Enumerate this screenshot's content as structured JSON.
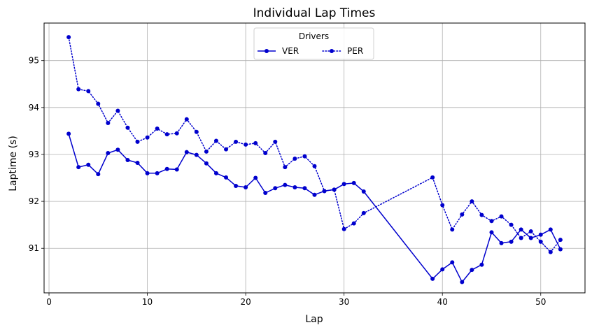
{
  "chart_data": {
    "type": "line",
    "title": "Individual Lap Times",
    "xlabel": "Lap",
    "ylabel": "Laptime (s)",
    "xlim": [
      -0.5,
      54.5
    ],
    "ylim": [
      90.05,
      95.8
    ],
    "xticks": [
      0,
      10,
      20,
      30,
      40,
      50
    ],
    "yticks": [
      91,
      92,
      93,
      94,
      95
    ],
    "grid": true,
    "legend": {
      "title": "Drivers",
      "placement": "top-center",
      "columns": 2
    },
    "series": [
      {
        "name": "VER",
        "color": "#0000cd",
        "linestyle": "solid",
        "marker": "circle",
        "x": [
          2,
          3,
          4,
          5,
          6,
          7,
          8,
          9,
          10,
          11,
          12,
          13,
          14,
          15,
          16,
          17,
          18,
          19,
          20,
          21,
          22,
          23,
          24,
          25,
          26,
          27,
          28,
          29,
          30,
          31,
          32,
          39,
          40,
          41,
          42,
          43,
          44,
          45,
          46,
          47,
          48,
          49,
          50,
          51,
          52
        ],
        "y": [
          93.44,
          92.73,
          92.78,
          92.58,
          93.03,
          93.1,
          92.88,
          92.82,
          92.6,
          92.6,
          92.69,
          92.68,
          93.05,
          92.99,
          92.81,
          92.6,
          92.51,
          92.33,
          92.3,
          92.5,
          92.18,
          92.28,
          92.35,
          92.3,
          92.28,
          92.14,
          92.22,
          92.25,
          92.37,
          92.39,
          92.21,
          90.35,
          90.55,
          90.7,
          90.28,
          90.54,
          90.65,
          91.34,
          91.11,
          91.14,
          91.4,
          91.22,
          91.29,
          91.4,
          90.98
        ]
      },
      {
        "name": "PER",
        "color": "#0000cd",
        "linestyle": "dotted",
        "marker": "circle",
        "x": [
          2,
          3,
          4,
          5,
          6,
          7,
          8,
          9,
          10,
          11,
          12,
          13,
          14,
          15,
          16,
          17,
          18,
          19,
          20,
          21,
          22,
          23,
          24,
          25,
          26,
          27,
          28,
          29,
          30,
          31,
          32,
          39,
          40,
          41,
          42,
          43,
          44,
          45,
          46,
          47,
          48,
          49,
          50,
          51,
          52
        ],
        "y": [
          95.5,
          94.39,
          94.35,
          94.08,
          93.67,
          93.93,
          93.57,
          93.27,
          93.36,
          93.55,
          93.43,
          93.45,
          93.75,
          93.48,
          93.06,
          93.29,
          93.11,
          93.27,
          93.21,
          93.24,
          93.03,
          93.27,
          92.73,
          92.91,
          92.96,
          92.75,
          92.22,
          92.25,
          91.41,
          91.53,
          91.75,
          92.51,
          91.92,
          91.4,
          91.72,
          92.0,
          91.71,
          91.58,
          91.68,
          91.5,
          91.22,
          91.36,
          91.14,
          90.92,
          91.18
        ]
      }
    ]
  }
}
